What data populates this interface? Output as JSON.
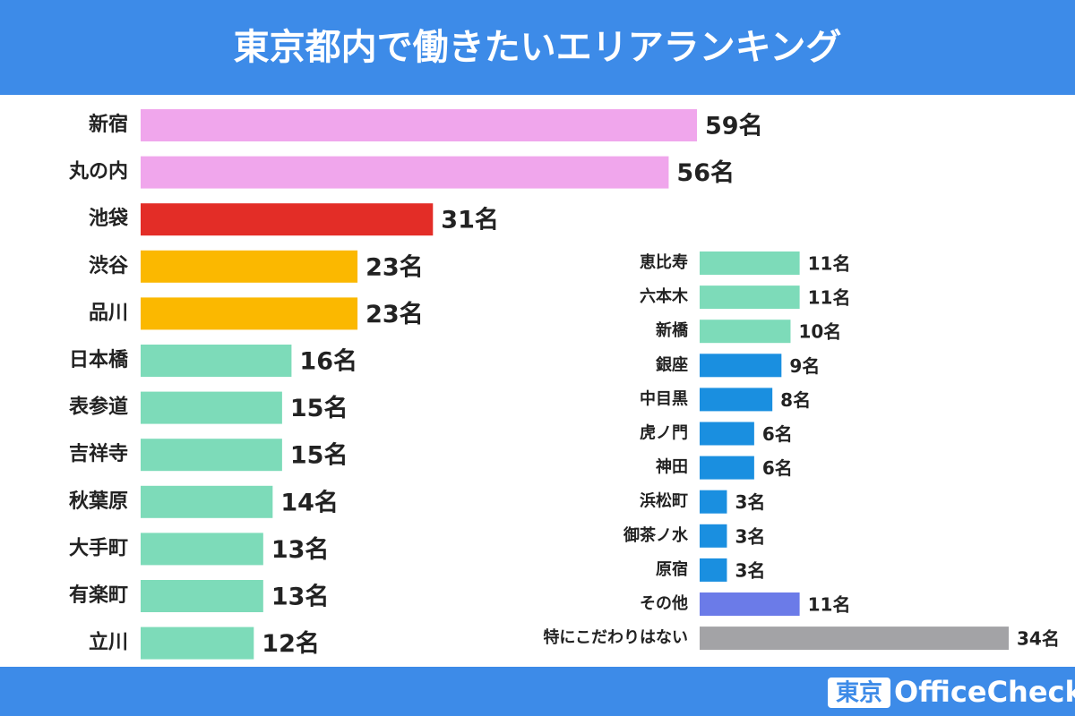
{
  "title": "東京都内で働きたいエリアランキング",
  "logo": {
    "mark": "東京",
    "name": "OfficeCheck"
  },
  "chart_data": [
    {
      "type": "bar",
      "categories": [
        "新宿",
        "丸の内",
        "池袋",
        "渋谷",
        "品川",
        "日本橋",
        "表参道",
        "吉祥寺",
        "秋葉原",
        "大手町",
        "有楽町",
        "立川"
      ],
      "values": [
        59,
        56,
        31,
        23,
        23,
        16,
        15,
        15,
        14,
        13,
        13,
        12
      ],
      "value_labels": [
        "59名",
        "56名",
        "31名",
        "23名",
        "23名",
        "16名",
        "15名",
        "15名",
        "14名",
        "13名",
        "13名",
        "12名"
      ],
      "colors": [
        "#f0a6ec",
        "#f0a6ec",
        "#e32d27",
        "#fbb800",
        "#fbb800",
        "#7ddbb9",
        "#7ddbb9",
        "#7ddbb9",
        "#7ddbb9",
        "#7ddbb9",
        "#7ddbb9",
        "#7ddbb9"
      ]
    },
    {
      "type": "bar",
      "categories": [
        "恵比寿",
        "六本木",
        "新橋",
        "銀座",
        "中目黒",
        "虎ノ門",
        "神田",
        "浜松町",
        "御茶ノ水",
        "原宿",
        "その他",
        "特にこだわりはない"
      ],
      "values": [
        11,
        11,
        10,
        9,
        8,
        6,
        6,
        3,
        3,
        3,
        11,
        34
      ],
      "value_labels": [
        "11名",
        "11名",
        "10名",
        "9名",
        "8名",
        "6名",
        "6名",
        "3名",
        "3名",
        "3名",
        "11名",
        "34名"
      ],
      "colors": [
        "#7ddbb9",
        "#7ddbb9",
        "#7ddbb9",
        "#1a8fe0",
        "#1a8fe0",
        "#1a8fe0",
        "#1a8fe0",
        "#1a8fe0",
        "#1a8fe0",
        "#1a8fe0",
        "#6b7be8",
        "#a3a3a6"
      ]
    }
  ]
}
